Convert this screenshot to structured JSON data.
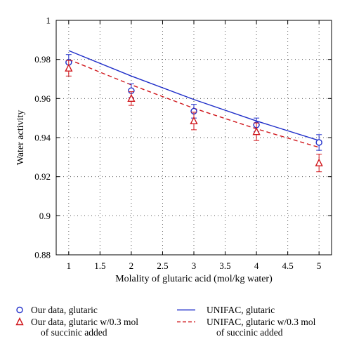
{
  "chart_data": {
    "type": "line",
    "xlabel": "Molality of glutaric acid (mol/kg water)",
    "ylabel": "Water activity",
    "xlim": [
      0.8,
      5.2
    ],
    "ylim": [
      0.88,
      1.0
    ],
    "x_ticks": [
      "1",
      "1.5",
      "2",
      "2.5",
      "3",
      "3.5",
      "4",
      "4.5",
      "5"
    ],
    "y_ticks": [
      "0.88",
      "0.9",
      "0.92",
      "0.94",
      "0.96",
      "0.98",
      "1"
    ],
    "grid": "dotted",
    "legend_position": "bottom",
    "series": [
      {
        "name": "Our data, glutaric",
        "kind": "points",
        "marker": "circle",
        "color": "#1f2ec9",
        "x": [
          1,
          2,
          3,
          4,
          5
        ],
        "y": [
          0.9785,
          0.964,
          0.9535,
          0.9465,
          0.9375
        ],
        "err": [
          0.004,
          0.0035,
          0.0035,
          0.0035,
          0.004
        ]
      },
      {
        "name": "Our data, glutaric w/0.3 mol",
        "name_line2": "of succinic added",
        "kind": "points",
        "marker": "triangle",
        "color": "#d0161b",
        "x": [
          1,
          2,
          3,
          4,
          5
        ],
        "y": [
          0.9755,
          0.96,
          0.9485,
          0.943,
          0.927
        ],
        "err": [
          0.004,
          0.0035,
          0.0045,
          0.0045,
          0.0045
        ]
      },
      {
        "name": "UNIFAC, glutaric",
        "kind": "line",
        "style": "solid",
        "color": "#1f2ec9",
        "x": [
          1,
          2,
          3,
          4,
          5
        ],
        "y": [
          0.9845,
          0.9715,
          0.9595,
          0.9485,
          0.9385
        ]
      },
      {
        "name": "UNIFAC, glutaric w/0.3 mol",
        "name_line2": "of succinic added",
        "kind": "line",
        "style": "dashed",
        "color": "#d0161b",
        "x": [
          1,
          2,
          3,
          4,
          5
        ],
        "y": [
          0.98,
          0.967,
          0.955,
          0.9445,
          0.935
        ]
      }
    ]
  }
}
